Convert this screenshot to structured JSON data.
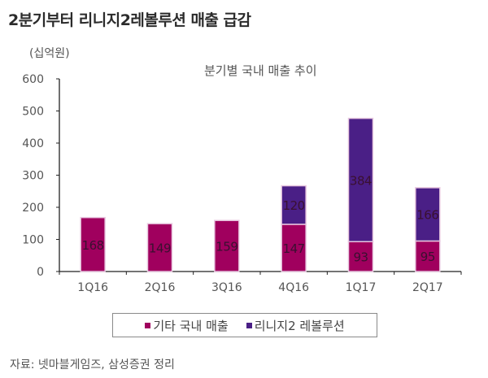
{
  "header": {
    "title": "2분기부터 리니지2레볼루션 매출 급감"
  },
  "footer": {
    "source": "자료: 넷마블게임즈, 삼성증권 정리"
  },
  "chart_data": {
    "type": "bar",
    "stacked": true,
    "title": "분기별 국내 매출 추이",
    "unit_label": "(십억원)",
    "xlabel": "",
    "ylabel": "(십억원)",
    "ylim": [
      0,
      600
    ],
    "yticks": [
      0,
      100,
      200,
      300,
      400,
      500,
      600
    ],
    "ytick_labels": [
      "0",
      "100",
      "200",
      "300",
      "400",
      "500",
      "600"
    ],
    "grid": false,
    "legend_position": "bottom",
    "categories": [
      "1Q16",
      "2Q16",
      "3Q16",
      "4Q16",
      "1Q17",
      "2Q17"
    ],
    "series": [
      {
        "name": "기타 국내 매출",
        "color": "#a0005e",
        "values": [
          168,
          149,
          159,
          147,
          93,
          95
        ]
      },
      {
        "name": "리니지2 레볼루션",
        "color": "#4a1f86",
        "values": [
          null,
          null,
          null,
          120,
          384,
          166
        ]
      }
    ],
    "data_labels": [
      [
        "168",
        "149",
        "159",
        "147",
        "93",
        "95"
      ],
      [
        "",
        "",
        "",
        "120",
        "384",
        "166"
      ]
    ]
  }
}
